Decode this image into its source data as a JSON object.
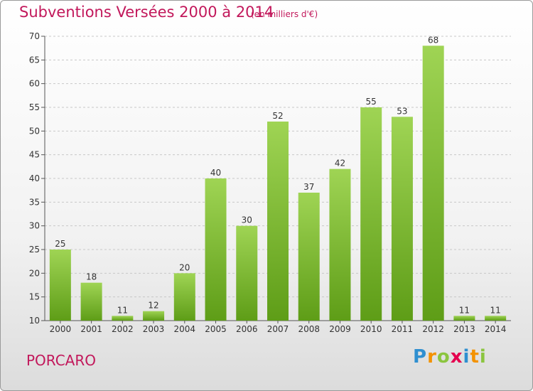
{
  "title": "Subventions Versées 2000 à 2014",
  "subtitle": "(en milliers d'€)",
  "town": "PORCARO",
  "logo": {
    "letters": [
      "P",
      "r",
      "o",
      "x",
      "i",
      "t",
      "i"
    ],
    "colors": [
      "#2f8fd0",
      "#f39200",
      "#8bc53f",
      "#e5004f",
      "#2f8fd0",
      "#f39200",
      "#8bc53f"
    ]
  },
  "colors": {
    "bar_top": "#9fd454",
    "bar_bottom": "#5e9d17",
    "text_accent": "#c2185b"
  },
  "chart_data": {
    "type": "bar",
    "categories": [
      "2000",
      "2001",
      "2002",
      "2003",
      "2004",
      "2005",
      "2006",
      "2007",
      "2008",
      "2009",
      "2010",
      "2011",
      "2012",
      "2013",
      "2014"
    ],
    "values": [
      25,
      18,
      11,
      12,
      20,
      40,
      30,
      52,
      37,
      42,
      55,
      53,
      68,
      11,
      11
    ],
    "ylim": [
      10,
      70
    ],
    "yticks": [
      10,
      15,
      20,
      25,
      30,
      35,
      40,
      45,
      50,
      55,
      60,
      65,
      70
    ],
    "grid": true,
    "legend": "none",
    "xlabel": "",
    "ylabel": "",
    "title": "Subventions Versées 2000 à 2014"
  }
}
